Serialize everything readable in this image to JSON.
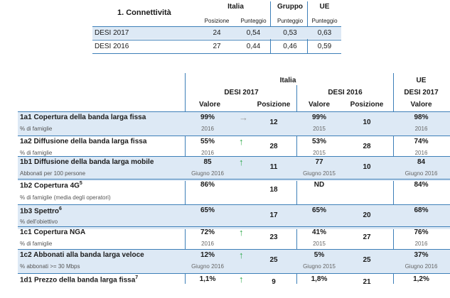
{
  "summary": {
    "title": "1. Connettività",
    "groups": [
      "Italia",
      "Gruppo",
      "UE"
    ],
    "subheaders": [
      "Posizione",
      "Punteggio",
      "Punteggio",
      "Punteggio"
    ],
    "rows": [
      {
        "label": "DESI 2017",
        "posizione": "24",
        "punteggio_it": "0,54",
        "gruppo": "0,53",
        "ue": "0,63"
      },
      {
        "label": "DESI 2016",
        "posizione": "27",
        "punteggio_it": "0,44",
        "gruppo": "0,46",
        "ue": "0,59"
      }
    ]
  },
  "detail": {
    "headers": {
      "italia": "Italia",
      "ue": "UE",
      "desi2017": "DESI 2017",
      "desi2016": "DESI 2016",
      "ue_desi2017": "DESI 2017",
      "valore": "Valore",
      "posizione": "Posizione"
    },
    "rows": [
      {
        "label": "1a1 Copertura della banda larga fissa",
        "sup": "",
        "sub": "% di famiglie",
        "v17": "99%",
        "y17": "2016",
        "arrow": "flat",
        "p17": "12",
        "v16": "99%",
        "y16": "2015",
        "p16": "10",
        "ue": "98%",
        "yue": "2016"
      },
      {
        "label": "1a2 Diffusione della banda larga fissa",
        "sup": "",
        "sub": "% di famiglie",
        "v17": "55%",
        "y17": "2016",
        "arrow": "up",
        "p17": "28",
        "v16": "53%",
        "y16": "2015",
        "p16": "28",
        "ue": "74%",
        "yue": "2016"
      },
      {
        "label": "1b1 Diffusione della banda larga mobile",
        "sup": "",
        "sub": "Abbonati per 100 persone",
        "v17": "85",
        "y17": "Giugno 2016",
        "arrow": "up",
        "p17": "11",
        "v16": "77",
        "y16": "Giugno 2015",
        "p16": "10",
        "ue": "84",
        "yue": "Giugno 2016"
      },
      {
        "label": "1b2 Copertura 4G",
        "sup": "5",
        "sub": "% di famiglie (media degli operatori)",
        "v17": "86%",
        "y17": "",
        "arrow": "",
        "p17": "18",
        "v16": "ND",
        "y16": "",
        "p16": "",
        "ue": "84%",
        "yue": ""
      },
      {
        "label": "1b3 Spettro",
        "sup": "6",
        "sub": "% dell'obiettivo",
        "v17": "65%",
        "y17": "",
        "arrow": "",
        "p17": "17",
        "v16": "65%",
        "y16": "",
        "p16": "20",
        "ue": "68%",
        "yue": ""
      },
      {
        "label": "1c1 Copertura NGA",
        "sup": "",
        "sub": "% di famiglie",
        "v17": "72%",
        "y17": "2016",
        "arrow": "up",
        "p17": "23",
        "v16": "41%",
        "y16": "2015",
        "p16": "27",
        "ue": "76%",
        "yue": "2016"
      },
      {
        "label": "1c2 Abbonati alla banda larga veloce",
        "sup": "",
        "sub": "% abbonati >= 30 Mbps",
        "v17": "12%",
        "y17": "Giugno 2016",
        "arrow": "up",
        "p17": "25",
        "v16": "5%",
        "y16": "Giugno 2015",
        "p16": "25",
        "ue": "37%",
        "yue": "Giugno 2016"
      },
      {
        "label": "1d1 Prezzo della banda larga fissa",
        "sup": "7",
        "sub": "",
        "v17": "1,1%",
        "y17": "",
        "arrow": "up",
        "p17": "9",
        "v16": "1,8%",
        "y16": "",
        "p16": "21",
        "ue": "1,2%",
        "yue": ""
      }
    ]
  },
  "colors": {
    "accent_line": "#3d7fb8",
    "row_shade": "#dde9f5",
    "arrow_up": "#2ea84a",
    "arrow_flat": "#999999"
  },
  "icons": {
    "up": "arrow-up-icon",
    "flat": "arrow-right-icon"
  }
}
